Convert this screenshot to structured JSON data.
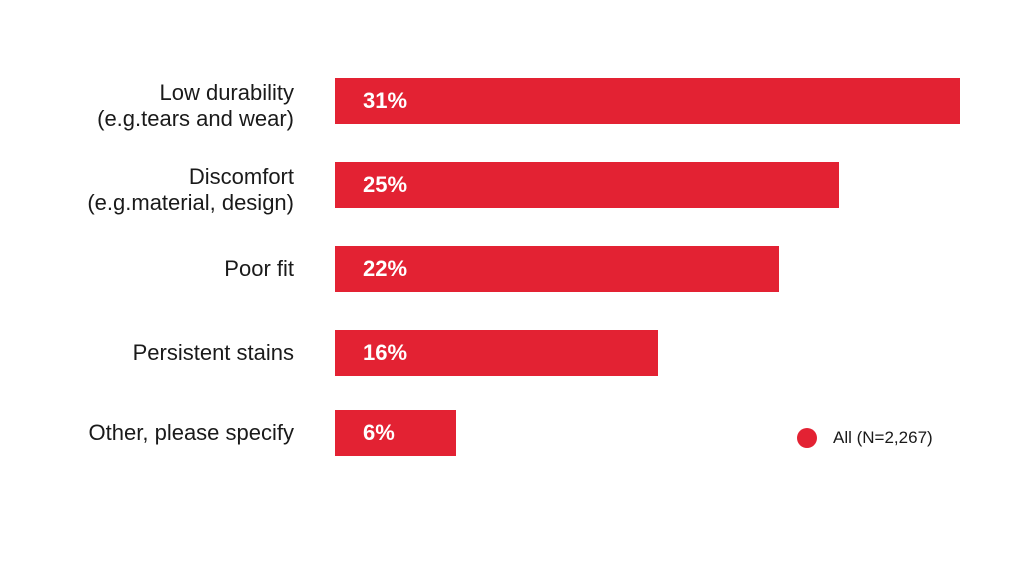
{
  "chart_data": {
    "type": "bar",
    "orientation": "horizontal",
    "title": "",
    "xlabel": "",
    "ylabel": "",
    "xlim": [
      0,
      31
    ],
    "grid": false,
    "categories": [
      "Low durability\n(e.g.tears and wear)",
      "Discomfort\n(e.g.material, design)",
      "Poor fit",
      "Persistent stains",
      "Other, please specify"
    ],
    "values": [
      31,
      25,
      22,
      16,
      6
    ],
    "data_labels": [
      "31%",
      "25%",
      "22%",
      "16%",
      "6%"
    ],
    "series": [
      {
        "name": "All (N=2,267)",
        "color": "#e32233",
        "values": [
          31,
          25,
          22,
          16,
          6
        ]
      }
    ],
    "legend": {
      "position": "bottom-right",
      "entries": [
        "All (N=2,267)"
      ]
    }
  }
}
